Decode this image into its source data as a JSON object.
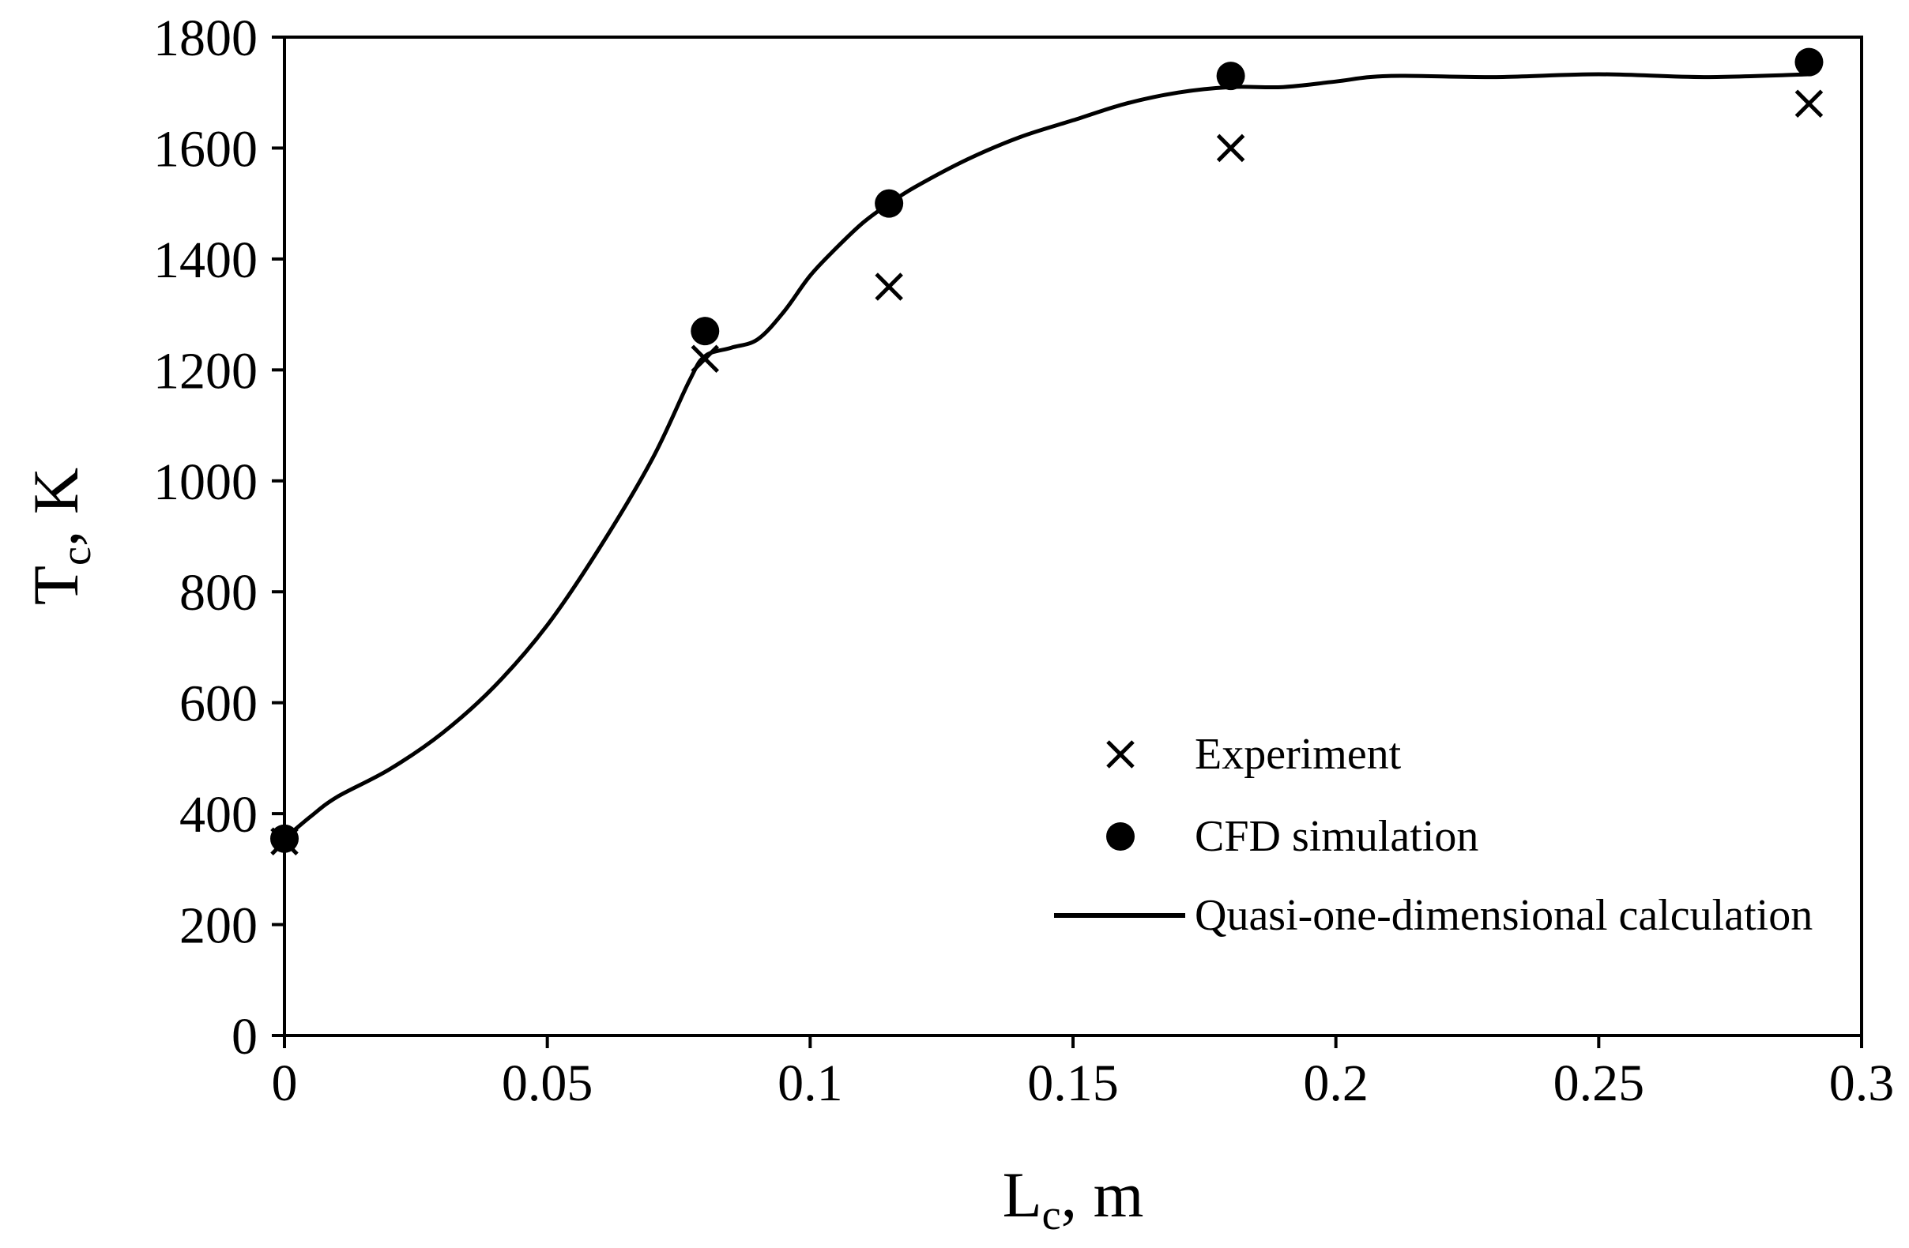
{
  "chart_data": {
    "type": "scatter",
    "xlabel": {
      "main": "L",
      "sub": "c",
      "rest": ", m"
    },
    "ylabel": {
      "main": "T",
      "sub": "c",
      "rest": ", K"
    },
    "xlim": [
      0,
      0.3
    ],
    "ylim": [
      0,
      1800
    ],
    "xticks": [
      {
        "value": 0,
        "label": "0"
      },
      {
        "value": 0.05,
        "label": "0.05"
      },
      {
        "value": 0.1,
        "label": "0.1"
      },
      {
        "value": 0.15,
        "label": "0.15"
      },
      {
        "value": 0.2,
        "label": "0.2"
      },
      {
        "value": 0.25,
        "label": "0.25"
      },
      {
        "value": 0.3,
        "label": "0.3"
      }
    ],
    "yticks": [
      {
        "value": 0,
        "label": "0"
      },
      {
        "value": 200,
        "label": "200"
      },
      {
        "value": 400,
        "label": "400"
      },
      {
        "value": 600,
        "label": "600"
      },
      {
        "value": 800,
        "label": "800"
      },
      {
        "value": 1000,
        "label": "1000"
      },
      {
        "value": 1200,
        "label": "1200"
      },
      {
        "value": 1400,
        "label": "1400"
      },
      {
        "value": 1600,
        "label": "1600"
      },
      {
        "value": 1800,
        "label": "1800"
      }
    ],
    "grid": false,
    "legend_position": "bottom-right",
    "series": [
      {
        "name": "Experiment",
        "marker": "x",
        "points": [
          [
            0,
            350
          ],
          [
            0.08,
            1220
          ],
          [
            0.115,
            1350
          ],
          [
            0.18,
            1600
          ],
          [
            0.29,
            1680
          ]
        ]
      },
      {
        "name": "CFD simulation",
        "marker": "circle",
        "points": [
          [
            0,
            355
          ],
          [
            0.08,
            1270
          ],
          [
            0.115,
            1500
          ],
          [
            0.18,
            1730
          ],
          [
            0.29,
            1755
          ]
        ]
      },
      {
        "name": "Quasi-one-dimensional calculation",
        "marker": "line",
        "points": [
          [
            0,
            355
          ],
          [
            0.005,
            395
          ],
          [
            0.01,
            430
          ],
          [
            0.02,
            480
          ],
          [
            0.03,
            545
          ],
          [
            0.04,
            630
          ],
          [
            0.05,
            740
          ],
          [
            0.06,
            880
          ],
          [
            0.07,
            1040
          ],
          [
            0.077,
            1180
          ],
          [
            0.08,
            1225
          ],
          [
            0.085,
            1240
          ],
          [
            0.09,
            1255
          ],
          [
            0.095,
            1305
          ],
          [
            0.1,
            1370
          ],
          [
            0.105,
            1420
          ],
          [
            0.11,
            1465
          ],
          [
            0.115,
            1500
          ],
          [
            0.12,
            1530
          ],
          [
            0.13,
            1580
          ],
          [
            0.14,
            1620
          ],
          [
            0.15,
            1650
          ],
          [
            0.16,
            1680
          ],
          [
            0.17,
            1700
          ],
          [
            0.18,
            1710
          ],
          [
            0.19,
            1710
          ],
          [
            0.2,
            1720
          ],
          [
            0.21,
            1730
          ],
          [
            0.23,
            1728
          ],
          [
            0.25,
            1733
          ],
          [
            0.27,
            1728
          ],
          [
            0.29,
            1733
          ]
        ]
      }
    ]
  },
  "colors": {
    "ink": "#000000",
    "background": "#ffffff"
  }
}
